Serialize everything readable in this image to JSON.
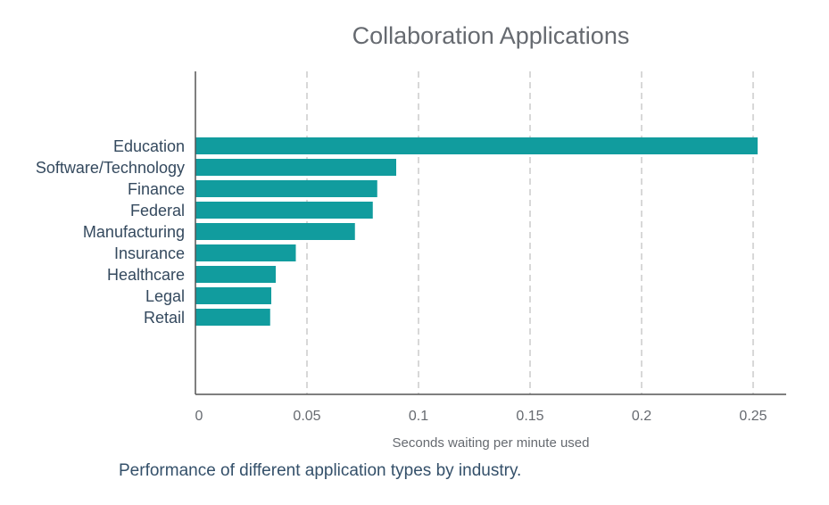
{
  "chart_data": {
    "type": "bar",
    "orientation": "horizontal",
    "title": "Collaboration Applications",
    "xlabel": "Seconds waiting per minute used",
    "ylabel": "",
    "categories": [
      "Education",
      "Software/Technology",
      "Finance",
      "Federal",
      "Manufacturing",
      "Insurance",
      "Healthcare",
      "Legal",
      "Retail"
    ],
    "values": [
      0.252,
      0.09,
      0.0815,
      0.0795,
      0.0715,
      0.045,
      0.036,
      0.034,
      0.0335
    ],
    "xlim": [
      0,
      0.265
    ],
    "xticks": [
      0,
      0.05,
      0.1,
      0.15,
      0.2,
      0.25
    ],
    "xtick_labels": [
      "0",
      "0.05",
      "0.1",
      "0.15",
      "0.2",
      "0.25"
    ],
    "grid": "vertical dashed",
    "bar_color": "#119c9e"
  },
  "caption": "Performance of different application types by industry."
}
